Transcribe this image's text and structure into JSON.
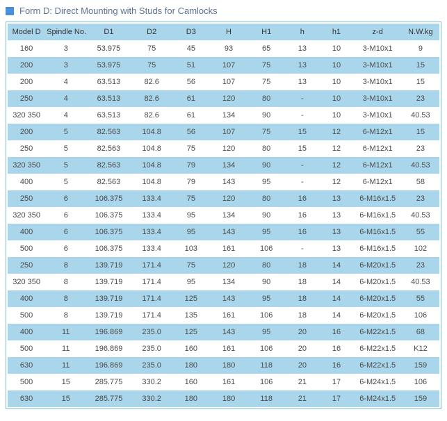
{
  "title": "Form D: Direct Mounting  with Studs for Camlocks",
  "titleColor": "#5b7493",
  "squareColor": "#4a90d9",
  "headerBg": "#a9d6eb",
  "rowOddBg": "#ffffff",
  "rowEvenBg": "#a9d6eb",
  "borderColor": "#7fb8d9",
  "columns": [
    "Model D",
    "Spindle No.",
    "D1",
    "D2",
    "D3",
    "H",
    "H1",
    "h",
    "h1",
    "z-d",
    "N.W.kg"
  ],
  "colClasses": [
    "col-model",
    "col-spindle",
    "col-d1",
    "col-d2",
    "col-d3",
    "col-h",
    "col-h1",
    "col-hh",
    "col-hh1",
    "col-zd",
    "col-nw"
  ],
  "rows": [
    [
      "160",
      "3",
      "53.975",
      "75",
      "45",
      "93",
      "65",
      "13",
      "10",
      "3-M10x1",
      "9"
    ],
    [
      "200",
      "3",
      "53.975",
      "75",
      "51",
      "107",
      "75",
      "13",
      "10",
      "3-M10x1",
      "15"
    ],
    [
      "200",
      "4",
      "63.513",
      "82.6",
      "56",
      "107",
      "75",
      "13",
      "10",
      "3-M10x1",
      "15"
    ],
    [
      "250",
      "4",
      "63.513",
      "82.6",
      "61",
      "120",
      "80",
      "-",
      "10",
      "3-M10x1",
      "23"
    ],
    [
      "320 350",
      "4",
      "63.513",
      "82.6",
      "61",
      "134",
      "90",
      "-",
      "10",
      "3-M10x1",
      "40.53"
    ],
    [
      "200",
      "5",
      "82.563",
      "104.8",
      "56",
      "107",
      "75",
      "15",
      "12",
      "6-M12x1",
      "15"
    ],
    [
      "250",
      "5",
      "82.563",
      "104.8",
      "75",
      "120",
      "80",
      "15",
      "12",
      "6-M12x1",
      "23"
    ],
    [
      "320 350",
      "5",
      "82.563",
      "104.8",
      "79",
      "134",
      "90",
      "-",
      "12",
      "6-M12x1",
      "40.53"
    ],
    [
      "400",
      "5",
      "82.563",
      "104.8",
      "79",
      "143",
      "95",
      "-",
      "12",
      "6-M12x1",
      "58"
    ],
    [
      "250",
      "6",
      "106.375",
      "133.4",
      "75",
      "120",
      "80",
      "16",
      "13",
      "6-M16x1.5",
      "23"
    ],
    [
      "320 350",
      "6",
      "106.375",
      "133.4",
      "95",
      "134",
      "90",
      "16",
      "13",
      "6-M16x1.5",
      "40.53"
    ],
    [
      "400",
      "6",
      "106.375",
      "133.4",
      "95",
      "143",
      "95",
      "16",
      "13",
      "6-M16x1.5",
      "55"
    ],
    [
      "500",
      "6",
      "106.375",
      "133.4",
      "103",
      "161",
      "106",
      "-",
      "13",
      "6-M16x1.5",
      "102"
    ],
    [
      "250",
      "8",
      "139.719",
      "171.4",
      "75",
      "120",
      "80",
      "18",
      "14",
      "6-M20x1.5",
      "23"
    ],
    [
      "320 350",
      "8",
      "139.719",
      "171.4",
      "95",
      "134",
      "90",
      "18",
      "14",
      "6-M20x1.5",
      "40.53"
    ],
    [
      "400",
      "8",
      "139.719",
      "171.4",
      "125",
      "143",
      "95",
      "18",
      "14",
      "6-M20x1.5",
      "55"
    ],
    [
      "500",
      "8",
      "139.719",
      "171.4",
      "135",
      "161",
      "106",
      "18",
      "14",
      "6-M20x1.5",
      "106"
    ],
    [
      "400",
      "11",
      "196.869",
      "235.0",
      "125",
      "143",
      "95",
      "20",
      "16",
      "6-M22x1.5",
      "68"
    ],
    [
      "500",
      "11",
      "196.869",
      "235.0",
      "160",
      "161",
      "106",
      "20",
      "16",
      "6-M22x1.5",
      "K12"
    ],
    [
      "630",
      "11",
      "196.869",
      "235.0",
      "180",
      "180",
      "118",
      "20",
      "16",
      "6-M22x1.5",
      "159"
    ],
    [
      "500",
      "15",
      "285.775",
      "330.2",
      "160",
      "161",
      "106",
      "21",
      "17",
      "6-M24x1.5",
      "106"
    ],
    [
      "630",
      "15",
      "285.775",
      "330.2",
      "180",
      "180",
      "118",
      "21",
      "17",
      "6-M24x1.5",
      "159"
    ]
  ]
}
